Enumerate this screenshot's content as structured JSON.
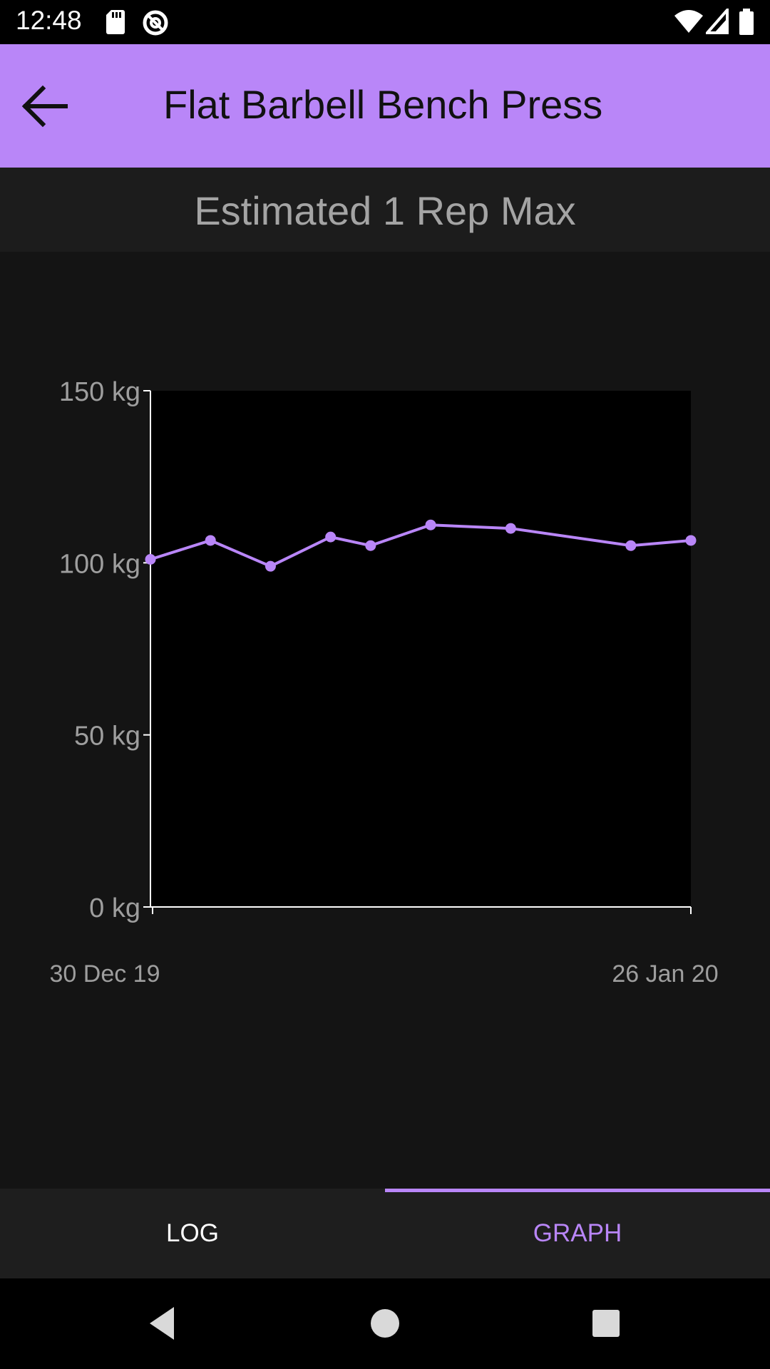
{
  "status_bar": {
    "time": "12:48",
    "left_icons": [
      "sd-card-icon",
      "sync-icon"
    ],
    "right_icons": [
      "wifi-icon",
      "signal-icon",
      "battery-icon"
    ]
  },
  "app_bar": {
    "title": "Flat Barbell Bench Press",
    "back_icon": "arrow-back-icon",
    "color": "#b986f8"
  },
  "subtitle": "Estimated 1 Rep Max",
  "chart_data": {
    "type": "line",
    "title": "Estimated 1 Rep Max",
    "xlabel": "",
    "ylabel": "",
    "x_start_label": "30 Dec 19",
    "x_end_label": "26 Jan 20",
    "x": [
      "2019-12-30",
      "2020-01-02",
      "2020-01-05",
      "2020-01-08",
      "2020-01-10",
      "2020-01-13",
      "2020-01-17",
      "2020-01-23",
      "2020-01-26"
    ],
    "y_ticks": [
      0,
      50,
      100,
      150
    ],
    "y_tick_labels": [
      "0 kg",
      "50 kg",
      "100 kg",
      "150 kg"
    ],
    "ylim": [
      0,
      150
    ],
    "series": [
      {
        "values": [
          101,
          106.5,
          99,
          107.5,
          105,
          111,
          110,
          105,
          106.5
        ],
        "color": "#b986f8"
      }
    ],
    "grid": false,
    "plot_background": "#000000"
  },
  "tabs": [
    {
      "label": "LOG",
      "active": false
    },
    {
      "label": "GRAPH",
      "active": true
    }
  ],
  "nav_bar": {
    "buttons": [
      "nav-back-icon",
      "nav-home-icon",
      "nav-recents-icon"
    ]
  }
}
